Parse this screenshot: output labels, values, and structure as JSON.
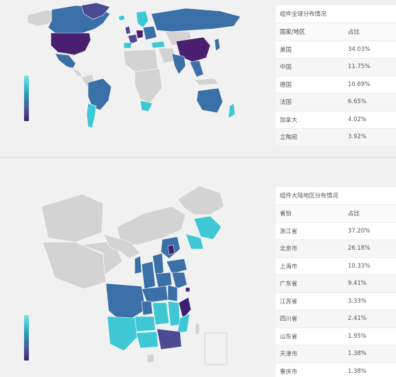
{
  "colors": {
    "land_default": "#d3d3d3",
    "scale": [
      "#7fe0e6",
      "#3ec8d6",
      "#2f9cb8",
      "#3b6fa7",
      "#4b4a93",
      "#3c1f6f"
    ]
  },
  "world_panel": {
    "title": "组件全球分布情况",
    "headers": [
      "国家/地区",
      "占比"
    ],
    "rows": [
      {
        "name": "美国",
        "value": "34.03%"
      },
      {
        "name": "中国",
        "value": "11.75%"
      },
      {
        "name": "德国",
        "value": "10.69%"
      },
      {
        "name": "法国",
        "value": "6.65%"
      },
      {
        "name": "加拿大",
        "value": "4.02%"
      },
      {
        "name": "立陶宛",
        "value": "3.92%"
      }
    ]
  },
  "china_panel": {
    "title": "组件大陆地区分布情况",
    "headers": [
      "省份",
      "占比"
    ],
    "rows": [
      {
        "name": "浙江省",
        "value": "37.20%"
      },
      {
        "name": "北京市",
        "value": "26.18%"
      },
      {
        "name": "上海市",
        "value": "10.33%"
      },
      {
        "name": "广东省",
        "value": "9.41%"
      },
      {
        "name": "江苏省",
        "value": "3.33%"
      },
      {
        "name": "四川省",
        "value": "2.41%"
      },
      {
        "name": "山东省",
        "value": "1.95%"
      },
      {
        "name": "天津市",
        "value": "1.38%"
      },
      {
        "name": "重庆市",
        "value": "1.38%"
      }
    ]
  },
  "chart_data": [
    {
      "type": "heatmap",
      "subtype": "choropleth-world",
      "title": "组件全球分布情况",
      "categories": [
        "美国",
        "中国",
        "德国",
        "法国",
        "加拿大",
        "立陶宛"
      ],
      "values": [
        34.03,
        11.75,
        10.69,
        6.65,
        4.02,
        3.92
      ],
      "unit": "%",
      "legend": "left visual-map gradient bar"
    },
    {
      "type": "heatmap",
      "subtype": "choropleth-china",
      "title": "组件大陆地区分布情况",
      "categories": [
        "浙江省",
        "北京市",
        "上海市",
        "广东省",
        "江苏省",
        "四川省",
        "山东省",
        "天津市",
        "重庆市"
      ],
      "values": [
        37.2,
        26.18,
        10.33,
        9.41,
        3.33,
        2.41,
        1.95,
        1.38,
        1.38
      ],
      "unit": "%",
      "legend": "left visual-map gradient bar"
    }
  ]
}
